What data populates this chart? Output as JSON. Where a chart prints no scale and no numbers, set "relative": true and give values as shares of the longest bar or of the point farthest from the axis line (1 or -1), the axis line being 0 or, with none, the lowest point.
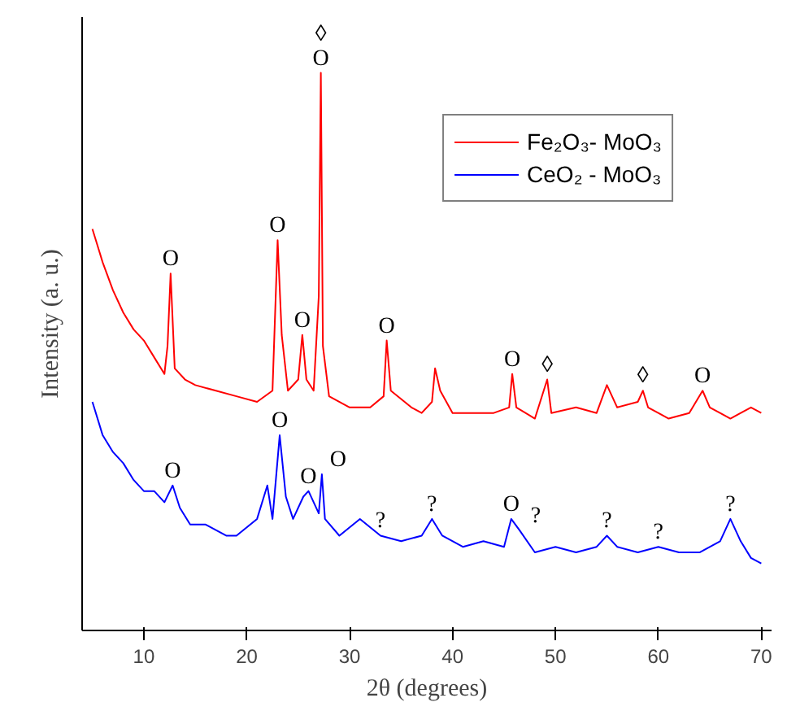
{
  "chart_data": {
    "type": "line",
    "relative": true,
    "xlabel": "2θ (degrees)",
    "ylabel": "Intensity (a. u.)",
    "xlim": [
      4,
      71
    ],
    "xticks": [
      10,
      20,
      30,
      40,
      50,
      60,
      70
    ],
    "grid": false,
    "legend": "top right",
    "line_style": "solid",
    "marker": "none",
    "series": [
      {
        "name": "Fe₂O₃- MoO₃",
        "color": "#ff0000",
        "x": [
          5,
          5.5,
          6,
          7,
          8,
          9,
          10,
          11,
          12,
          12.3,
          12.6,
          13,
          14,
          15,
          17,
          19,
          21,
          22.5,
          23,
          23.4,
          24,
          25,
          25.4,
          25.8,
          26.5,
          27.0,
          27.2,
          27.4,
          28,
          30,
          32,
          33.3,
          33.6,
          34,
          36,
          37,
          38,
          38.3,
          38.8,
          40,
          42,
          44,
          45.5,
          45.8,
          46.2,
          48,
          49.2,
          49.6,
          52,
          54,
          55,
          56,
          58,
          58.5,
          59,
          61,
          63,
          64.3,
          65,
          67,
          69,
          70
        ],
        "values": [
          0.72,
          0.69,
          0.66,
          0.61,
          0.57,
          0.54,
          0.52,
          0.49,
          0.46,
          0.51,
          0.64,
          0.47,
          0.45,
          0.44,
          0.43,
          0.42,
          0.41,
          0.43,
          0.7,
          0.53,
          0.43,
          0.45,
          0.53,
          0.45,
          0.43,
          0.6,
          1.0,
          0.51,
          0.42,
          0.4,
          0.4,
          0.42,
          0.52,
          0.43,
          0.4,
          0.39,
          0.41,
          0.47,
          0.43,
          0.39,
          0.39,
          0.39,
          0.4,
          0.46,
          0.4,
          0.38,
          0.45,
          0.39,
          0.4,
          0.39,
          0.44,
          0.4,
          0.41,
          0.43,
          0.4,
          0.38,
          0.39,
          0.43,
          0.4,
          0.38,
          0.4,
          0.39
        ]
      },
      {
        "name": "CeO₂ - MoO₃",
        "color": "#0000ff",
        "x": [
          5,
          6,
          7,
          8,
          9,
          10,
          11,
          12,
          12.8,
          13.5,
          14.5,
          16,
          18,
          19,
          21,
          22,
          22.5,
          23.2,
          23.8,
          24.5,
          25.5,
          26,
          27,
          27.3,
          27.6,
          29,
          31,
          33,
          35,
          37,
          38,
          39,
          41,
          43,
          45,
          45.7,
          46.5,
          48,
          50,
          52,
          54,
          55,
          56,
          58,
          60,
          62,
          64,
          66,
          67,
          68,
          69,
          70
        ],
        "values": [
          0.41,
          0.35,
          0.32,
          0.3,
          0.27,
          0.25,
          0.25,
          0.23,
          0.26,
          0.22,
          0.19,
          0.19,
          0.17,
          0.17,
          0.2,
          0.26,
          0.2,
          0.35,
          0.24,
          0.2,
          0.24,
          0.25,
          0.21,
          0.28,
          0.2,
          0.17,
          0.2,
          0.17,
          0.16,
          0.17,
          0.2,
          0.17,
          0.15,
          0.16,
          0.15,
          0.2,
          0.18,
          0.14,
          0.15,
          0.14,
          0.15,
          0.17,
          0.15,
          0.14,
          0.15,
          0.14,
          0.14,
          0.16,
          0.2,
          0.16,
          0.13,
          0.12
        ]
      }
    ],
    "annotations": [
      {
        "text": "O",
        "x": 27.2,
        "y": 1.0
      },
      {
        "text": "◊",
        "x": 27.2,
        "y": 1.0
      },
      {
        "text": "O",
        "x": 12.6,
        "y": 0.64
      },
      {
        "text": "O",
        "x": 23,
        "y": 0.7
      },
      {
        "text": "O",
        "x": 25.4,
        "y": 0.53
      },
      {
        "text": "O",
        "x": 33.6,
        "y": 0.52
      },
      {
        "text": "O",
        "x": 45.8,
        "y": 0.46
      },
      {
        "text": "◊",
        "x": 49.2,
        "y": 0.45
      },
      {
        "text": "◊",
        "x": 58.5,
        "y": 0.43
      },
      {
        "text": "O",
        "x": 64.3,
        "y": 0.43
      },
      {
        "text": "O",
        "x": 12.8,
        "y": 0.26
      },
      {
        "text": "O",
        "x": 23.2,
        "y": 0.35
      },
      {
        "text": "O",
        "x": 26,
        "y": 0.25
      },
      {
        "text": "O",
        "x": 27.3,
        "y": 0.28
      },
      {
        "text": "?",
        "x": 33,
        "y": 0.17
      },
      {
        "text": "?",
        "x": 38,
        "y": 0.2
      },
      {
        "text": "O",
        "x": 45.7,
        "y": 0.2
      },
      {
        "text": "?",
        "x": 46.5,
        "y": 0.18
      },
      {
        "text": "?",
        "x": 55,
        "y": 0.17
      },
      {
        "text": "?",
        "x": 60,
        "y": 0.15
      },
      {
        "text": "?",
        "x": 67,
        "y": 0.2
      }
    ]
  }
}
